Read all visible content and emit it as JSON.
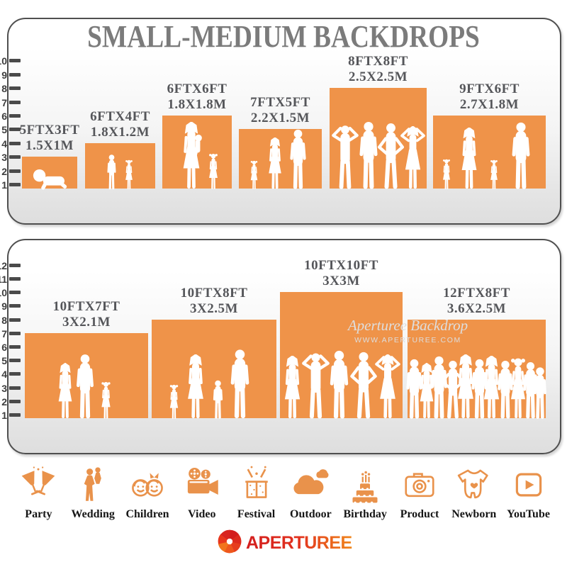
{
  "title": "SMALL-MEDIUM BACKDROPS",
  "colors": {
    "backdrop_orange": "#EF9349",
    "icon_orange": "#E9924B",
    "label_gray": "#55565a",
    "title_gray": "#7b7b7b",
    "logo_red": "#D31E1E",
    "logo_orange": "#F0861C"
  },
  "panels": [
    {
      "name": "small-medium-top-panel",
      "ruler_ticks": 10,
      "boxes": [
        {
          "size_ft": "5FTX3FT",
          "size_m": "1.5X1M",
          "w_ft": 5,
          "h_ft": 3,
          "figures": [
            "baby-crawl"
          ]
        },
        {
          "size_ft": "6FTX4FT",
          "size_m": "1.8X1.2M",
          "w_ft": 6,
          "h_ft": 4,
          "figures": [
            "boy",
            "girl"
          ]
        },
        {
          "size_ft": "6FTX6FT",
          "size_m": "1.8X1.8M",
          "w_ft": 6,
          "h_ft": 6,
          "figures": [
            "woman-holding-child",
            "girl"
          ]
        },
        {
          "size_ft": "7FTX5FT",
          "size_m": "2.2X1.5M",
          "w_ft": 7,
          "h_ft": 5,
          "figures": [
            "girl",
            "woman",
            "man"
          ]
        },
        {
          "size_ft": "8FTX8FT",
          "size_m": "2.5X2.5M",
          "w_ft": 8,
          "h_ft": 8,
          "figures": [
            "man-arms-up",
            "man",
            "man-hips",
            "woman-arms-up"
          ]
        },
        {
          "size_ft": "9FTX6FT",
          "size_m": "2.7X1.8M",
          "w_ft": 9,
          "h_ft": 6,
          "figures": [
            "girl",
            "woman",
            "girl",
            "man"
          ]
        }
      ]
    },
    {
      "name": "small-medium-bottom-panel",
      "ruler_ticks": 12,
      "boxes": [
        {
          "size_ft": "10FTX7FT",
          "size_m": "3X2.1M",
          "w_ft": 10,
          "h_ft": 7,
          "figures": [
            "woman",
            "man",
            "girl"
          ]
        },
        {
          "size_ft": "10FTX8FT",
          "size_m": "3X2.5M",
          "w_ft": 10,
          "h_ft": 8,
          "figures": [
            "girl",
            "woman",
            "boy",
            "man"
          ]
        },
        {
          "size_ft": "10FTX10FT",
          "size_m": "3X3M",
          "w_ft": 10,
          "h_ft": 10,
          "figures": [
            "woman",
            "man-arms-up",
            "man",
            "man-hips",
            "woman-arms-up"
          ]
        },
        {
          "size_ft": "12FTX8FT",
          "size_m": "3.6X2.5M",
          "w_ft": 12,
          "h_ft": 8,
          "figures": [
            "man",
            "woman",
            "man",
            "man-hips",
            "woman",
            "man",
            "woman",
            "man",
            "girl",
            "man",
            "boy"
          ]
        }
      ]
    }
  ],
  "watermark": {
    "brand": "Aperturee Backdrop",
    "url": "WWW.APERTUREE.COM"
  },
  "categories": [
    {
      "label": "Party",
      "icon": "party-icon"
    },
    {
      "label": "Wedding",
      "icon": "wedding-icon"
    },
    {
      "label": "Children",
      "icon": "children-icon"
    },
    {
      "label": "Video",
      "icon": "video-icon"
    },
    {
      "label": "Festival",
      "icon": "festival-icon"
    },
    {
      "label": "Outdoor",
      "icon": "outdoor-icon"
    },
    {
      "label": "Birthday",
      "icon": "birthday-icon"
    },
    {
      "label": "Product",
      "icon": "product-icon"
    },
    {
      "label": "Newborn",
      "icon": "newborn-icon"
    },
    {
      "label": "YouTube",
      "icon": "youtube-icon"
    }
  ],
  "logo": {
    "text": "APERTUREE"
  }
}
